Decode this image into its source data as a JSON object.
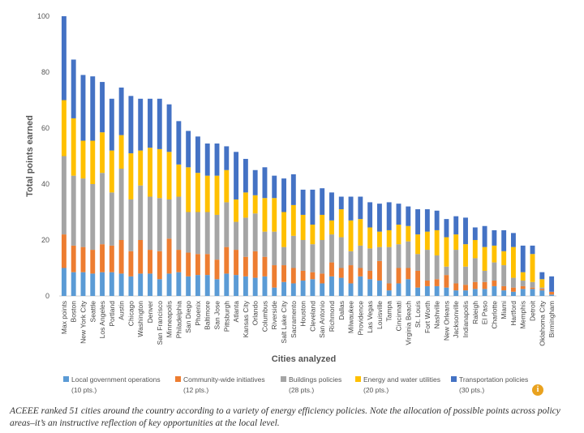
{
  "chart_data": {
    "type": "bar",
    "stacked": true,
    "ylabel": "Total points earned",
    "xlabel": "Cities analyzed",
    "ylim": [
      0,
      100
    ],
    "yticks": [
      0,
      20,
      40,
      60,
      80,
      100
    ],
    "grid": false,
    "legend_position": "bottom",
    "categories": [
      "Max points",
      "Boston",
      "New York City",
      "Seattle",
      "Los Angeles",
      "Portland",
      "Austin",
      "Chicago",
      "Washington",
      "Denver",
      "San Francisco",
      "Minneapolis",
      "Philadelphia",
      "San Diego",
      "Phoenix",
      "Baltimore",
      "San Jose",
      "Pittsburgh",
      "Atlanta",
      "Kansas City",
      "Orlando",
      "Columbus",
      "Riverside",
      "Salt Lake City",
      "Sacramento",
      "Houston",
      "Cleveland",
      "San Antonio",
      "Richmond",
      "Dallas",
      "Milwaukee",
      "Providence",
      "Las Vegas",
      "Louisville",
      "Tampa",
      "Cincinnati",
      "Virginia Beach",
      "St. Louis",
      "Fort Worth",
      "Nashville",
      "New Orleans",
      "Jacksonville",
      "Indianapolis",
      "Raleigh",
      "El Paso",
      "Charlotte",
      "Miami",
      "Hartford",
      "Memphis",
      "Detroit",
      "Oklahoma City",
      "Birmingham"
    ],
    "series": [
      {
        "name": "Local government operations",
        "points": "(10 pts.)",
        "color": "#5b9bd5",
        "values": [
          10,
          8.5,
          8.5,
          8,
          8.5,
          8.5,
          8,
          7,
          8,
          8,
          6,
          8,
          8.5,
          7,
          7.5,
          7.5,
          6,
          8,
          7.5,
          7,
          6.5,
          7,
          3,
          5,
          4.5,
          5.5,
          6,
          4.5,
          7,
          6.5,
          4.5,
          7,
          6,
          5.5,
          2,
          4.5,
          6,
          3,
          3.5,
          3.5,
          3,
          2,
          2,
          2.5,
          2.5,
          3.5,
          2,
          1.5,
          2.5,
          2.5,
          2,
          0.5
        ]
      },
      {
        "name": "Community-wide initiatives",
        "points": "(12 pts.)",
        "color": "#ed7d31",
        "values": [
          12,
          9.5,
          9,
          8.5,
          10,
          9.5,
          12,
          9,
          12,
          8.5,
          10,
          12.5,
          8,
          8.5,
          7.5,
          7.5,
          7,
          9.5,
          9,
          7,
          9.5,
          7,
          8,
          6,
          5.5,
          3.5,
          2.5,
          3.5,
          5,
          3.5,
          6.5,
          3,
          3,
          7,
          2.5,
          5.5,
          4,
          6,
          2,
          2.5,
          4.5,
          2.5,
          2,
          2.5,
          2.5,
          2,
          1.5,
          1.5,
          1,
          0.5,
          0.5,
          1
        ]
      },
      {
        "name": "Buildings policies",
        "points": "(28 pts.)",
        "color": "#a5a5a5",
        "values": [
          28,
          25,
          24.5,
          23.5,
          25.5,
          19,
          25.5,
          18.5,
          19.5,
          19,
          19,
          14,
          19,
          14.5,
          15,
          15,
          16,
          16,
          10,
          14,
          13.5,
          9,
          12,
          6.5,
          11.5,
          11,
          10,
          12,
          10,
          11,
          5,
          8,
          8,
          5,
          13,
          8.5,
          9.5,
          6,
          11,
          8.5,
          3,
          12,
          6.5,
          8.5,
          4,
          6.5,
          7.5,
          3.5,
          2,
          2,
          0.5,
          0
        ]
      },
      {
        "name": "Energy and water utilities",
        "points": "(20 pts.)",
        "color": "#ffc000",
        "values": [
          20,
          20.5,
          13.5,
          15.5,
          14.5,
          15,
          12,
          16.5,
          12.5,
          17.5,
          17.5,
          17,
          11.5,
          16,
          14,
          13,
          14,
          11.5,
          8,
          9,
          6.5,
          12,
          12,
          12.5,
          11,
          9,
          7,
          9,
          5,
          10,
          11,
          9.5,
          7.5,
          5.5,
          6,
          7,
          5.5,
          7,
          6.5,
          9,
          10.5,
          5.5,
          8,
          6.5,
          8.5,
          6,
          5,
          11,
          3,
          10,
          3,
          0
        ]
      },
      {
        "name": "Transportation policies",
        "points": "(30 pts.)",
        "color": "#4472c4",
        "values": [
          30,
          21,
          23.5,
          23,
          18,
          18.5,
          17,
          20.5,
          18.5,
          17.5,
          18,
          17,
          15.5,
          13,
          13,
          11.5,
          11.5,
          8.5,
          17,
          12,
          9,
          11,
          8,
          12,
          11,
          9,
          12.5,
          9.5,
          10,
          4.5,
          8.5,
          8,
          9,
          10,
          10,
          7.5,
          7,
          9,
          8,
          7,
          6.5,
          6.5,
          9.5,
          4.5,
          7.5,
          5.5,
          7.5,
          5,
          9.5,
          3,
          2.5,
          5.5
        ]
      }
    ]
  },
  "info_icon_label": "i",
  "caption": "ACEEE ranked 51 cities around the country according to a variety of energy efficiency policies. Note the allocation of possible points across policy areas–it’s an instructive reflection of key opportunities at the local level."
}
